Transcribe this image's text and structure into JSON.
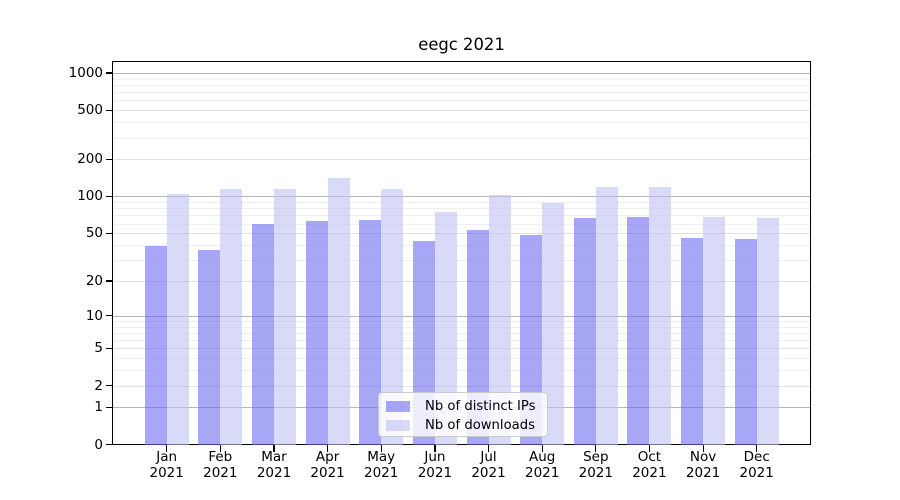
{
  "chart_data": {
    "type": "bar",
    "title": "eegc 2021",
    "categories": [
      "Jan 2021",
      "Feb 2021",
      "Mar 2021",
      "Apr 2021",
      "May 2021",
      "Jun 2021",
      "Jul 2021",
      "Aug 2021",
      "Sep 2021",
      "Oct 2021",
      "Nov 2021",
      "Dec 2021"
    ],
    "series": [
      {
        "name": "Nb of distinct IPs",
        "color": "rgba(108,108,238,0.6)",
        "color_hex": "#a7a7f5",
        "values": [
          39,
          36,
          59,
          63,
          64,
          43,
          53,
          48,
          66,
          68,
          46,
          45
        ]
      },
      {
        "name": "Nb of downloads",
        "color": "rgba(192,192,243,0.6)",
        "color_hex": "#d9d9f8",
        "values": [
          105,
          114,
          115,
          142,
          115,
          75,
          103,
          88,
          120,
          120,
          68,
          67
        ]
      }
    ],
    "yticks": [
      0,
      1,
      2,
      5,
      10,
      20,
      50,
      100,
      200,
      500,
      1000
    ],
    "minor_yticks": [
      3,
      4,
      6,
      7,
      8,
      9,
      30,
      40,
      60,
      70,
      80,
      90,
      300,
      400,
      600,
      700,
      800,
      900
    ],
    "yscale": "log10(1+y)",
    "ylim": [
      0,
      1250
    ],
    "grid": "horizontal",
    "legend_position": "lower center"
  }
}
